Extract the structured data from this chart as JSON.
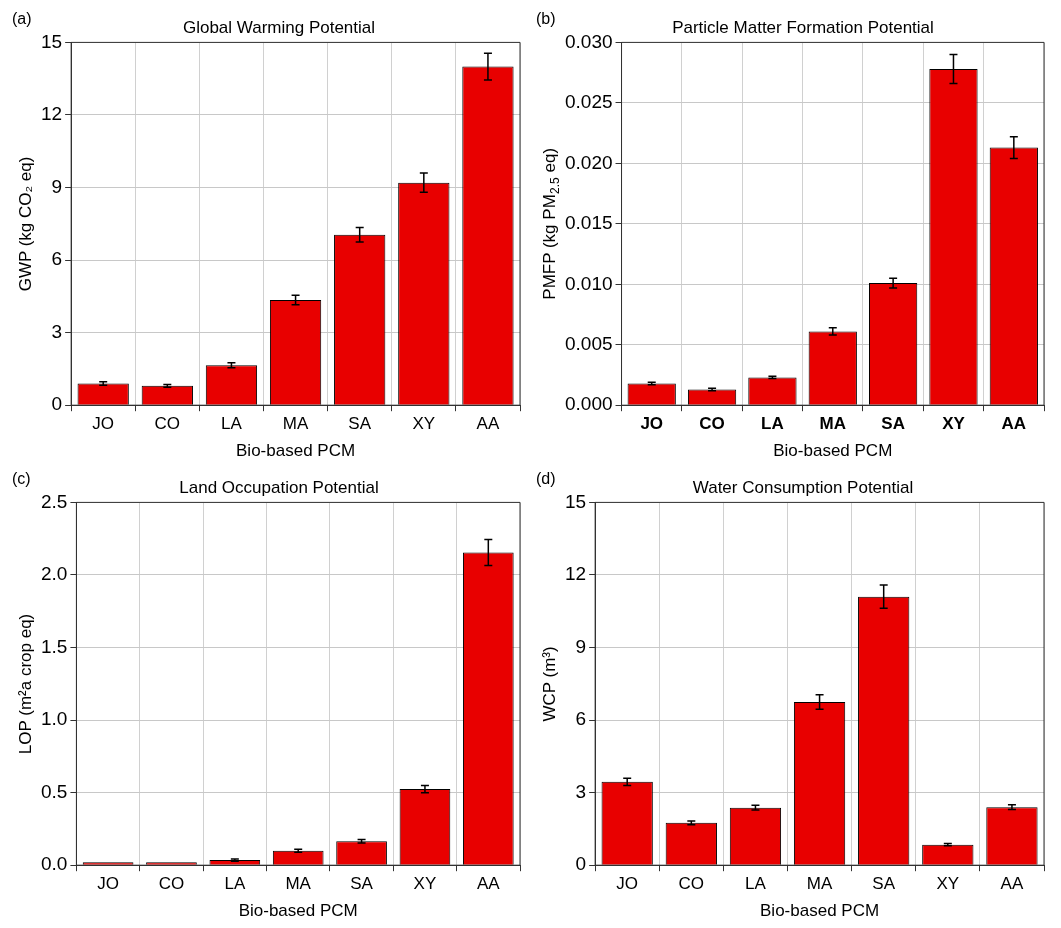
{
  "chart_data": [
    {
      "type": "bar",
      "title": "Global Warming Potential",
      "xlabel": "Bio-based PCM",
      "ylabel": "GWP (kg CO₂ eq)",
      "annotations": [
        "(a)"
      ],
      "categories": [
        "JO",
        "CO",
        "LA",
        "MA",
        "SA",
        "XY",
        "AA"
      ],
      "color": "#e80000",
      "values": [
        0.9,
        0.8,
        1.65,
        4.35,
        7.05,
        9.2,
        14.0
      ],
      "errors": [
        0.07,
        0.06,
        0.1,
        0.2,
        0.3,
        0.4,
        0.55
      ],
      "ylim": [
        0,
        15
      ],
      "yticks": [
        0,
        3,
        6,
        9,
        12,
        15
      ],
      "grid": true
    },
    {
      "type": "bar",
      "title": "Particle Matter Formation Potential",
      "xlabel": "Bio-based PCM",
      "ylabel": "PMFP (kg PM$_{2.5}$ eq)",
      "annotations": [
        "(b)"
      ],
      "categories": [
        "JO",
        "CO",
        "LA",
        "MA",
        "SA",
        "XY",
        "AA"
      ],
      "color": "#e80000",
      "values": [
        0.0018,
        0.0013,
        0.0023,
        0.0061,
        0.0101,
        0.0278,
        0.0213
      ],
      "errors": [
        0.0001,
        0.0001,
        0.0001,
        0.0003,
        0.0004,
        0.0012,
        0.0009
      ],
      "ylim": [
        0,
        0.03
      ],
      "yticks": [
        {
          "value": 0,
          "label": "0.000"
        },
        0.005,
        {
          "value": 0.01,
          "label": "0.010"
        },
        0.015,
        {
          "value": 0.02,
          "label": "0.020"
        },
        0.025,
        {
          "value": 0.03,
          "label": "0.030"
        }
      ],
      "grid": true
    },
    {
      "type": "bar",
      "title": "Land Occupation Potential",
      "xlabel": "Bio-based PCM",
      "ylabel": "LOP (m²a crop eq)",
      "annotations": [
        "(c)"
      ],
      "categories": [
        "JO",
        "CO",
        "LA",
        "MA",
        "SA",
        "XY",
        "AA"
      ],
      "color": "#e80000",
      "values": [
        0.02,
        0.02,
        0.035,
        0.1,
        0.165,
        0.525,
        2.155
      ],
      "errors": [
        null,
        null,
        0.008,
        0.01,
        0.012,
        0.025,
        0.09
      ],
      "ylim": [
        0,
        2.5
      ],
      "yticks": [
        {
          "value": 0,
          "label": "0.0"
        },
        0.5,
        {
          "value": 1,
          "label": "1.0"
        },
        1.5,
        {
          "value": 2,
          "label": "2.0"
        },
        2.5
      ],
      "grid": true
    },
    {
      "type": "bar",
      "title": "Water Consumption Potential",
      "xlabel": "Bio-based PCM",
      "ylabel": "WCP (m³)",
      "annotations": [
        "(d)"
      ],
      "categories": [
        "JO",
        "CO",
        "LA",
        "MA",
        "SA",
        "XY",
        "AA"
      ],
      "color": "#e80000",
      "values": [
        3.45,
        1.75,
        2.38,
        6.75,
        11.1,
        0.85,
        2.4
      ],
      "errors": [
        0.15,
        0.08,
        0.1,
        0.3,
        0.48,
        0.05,
        0.1
      ],
      "ylim": [
        0,
        15
      ],
      "yticks": [
        0,
        3,
        6,
        9,
        12,
        15
      ],
      "grid": true
    }
  ]
}
